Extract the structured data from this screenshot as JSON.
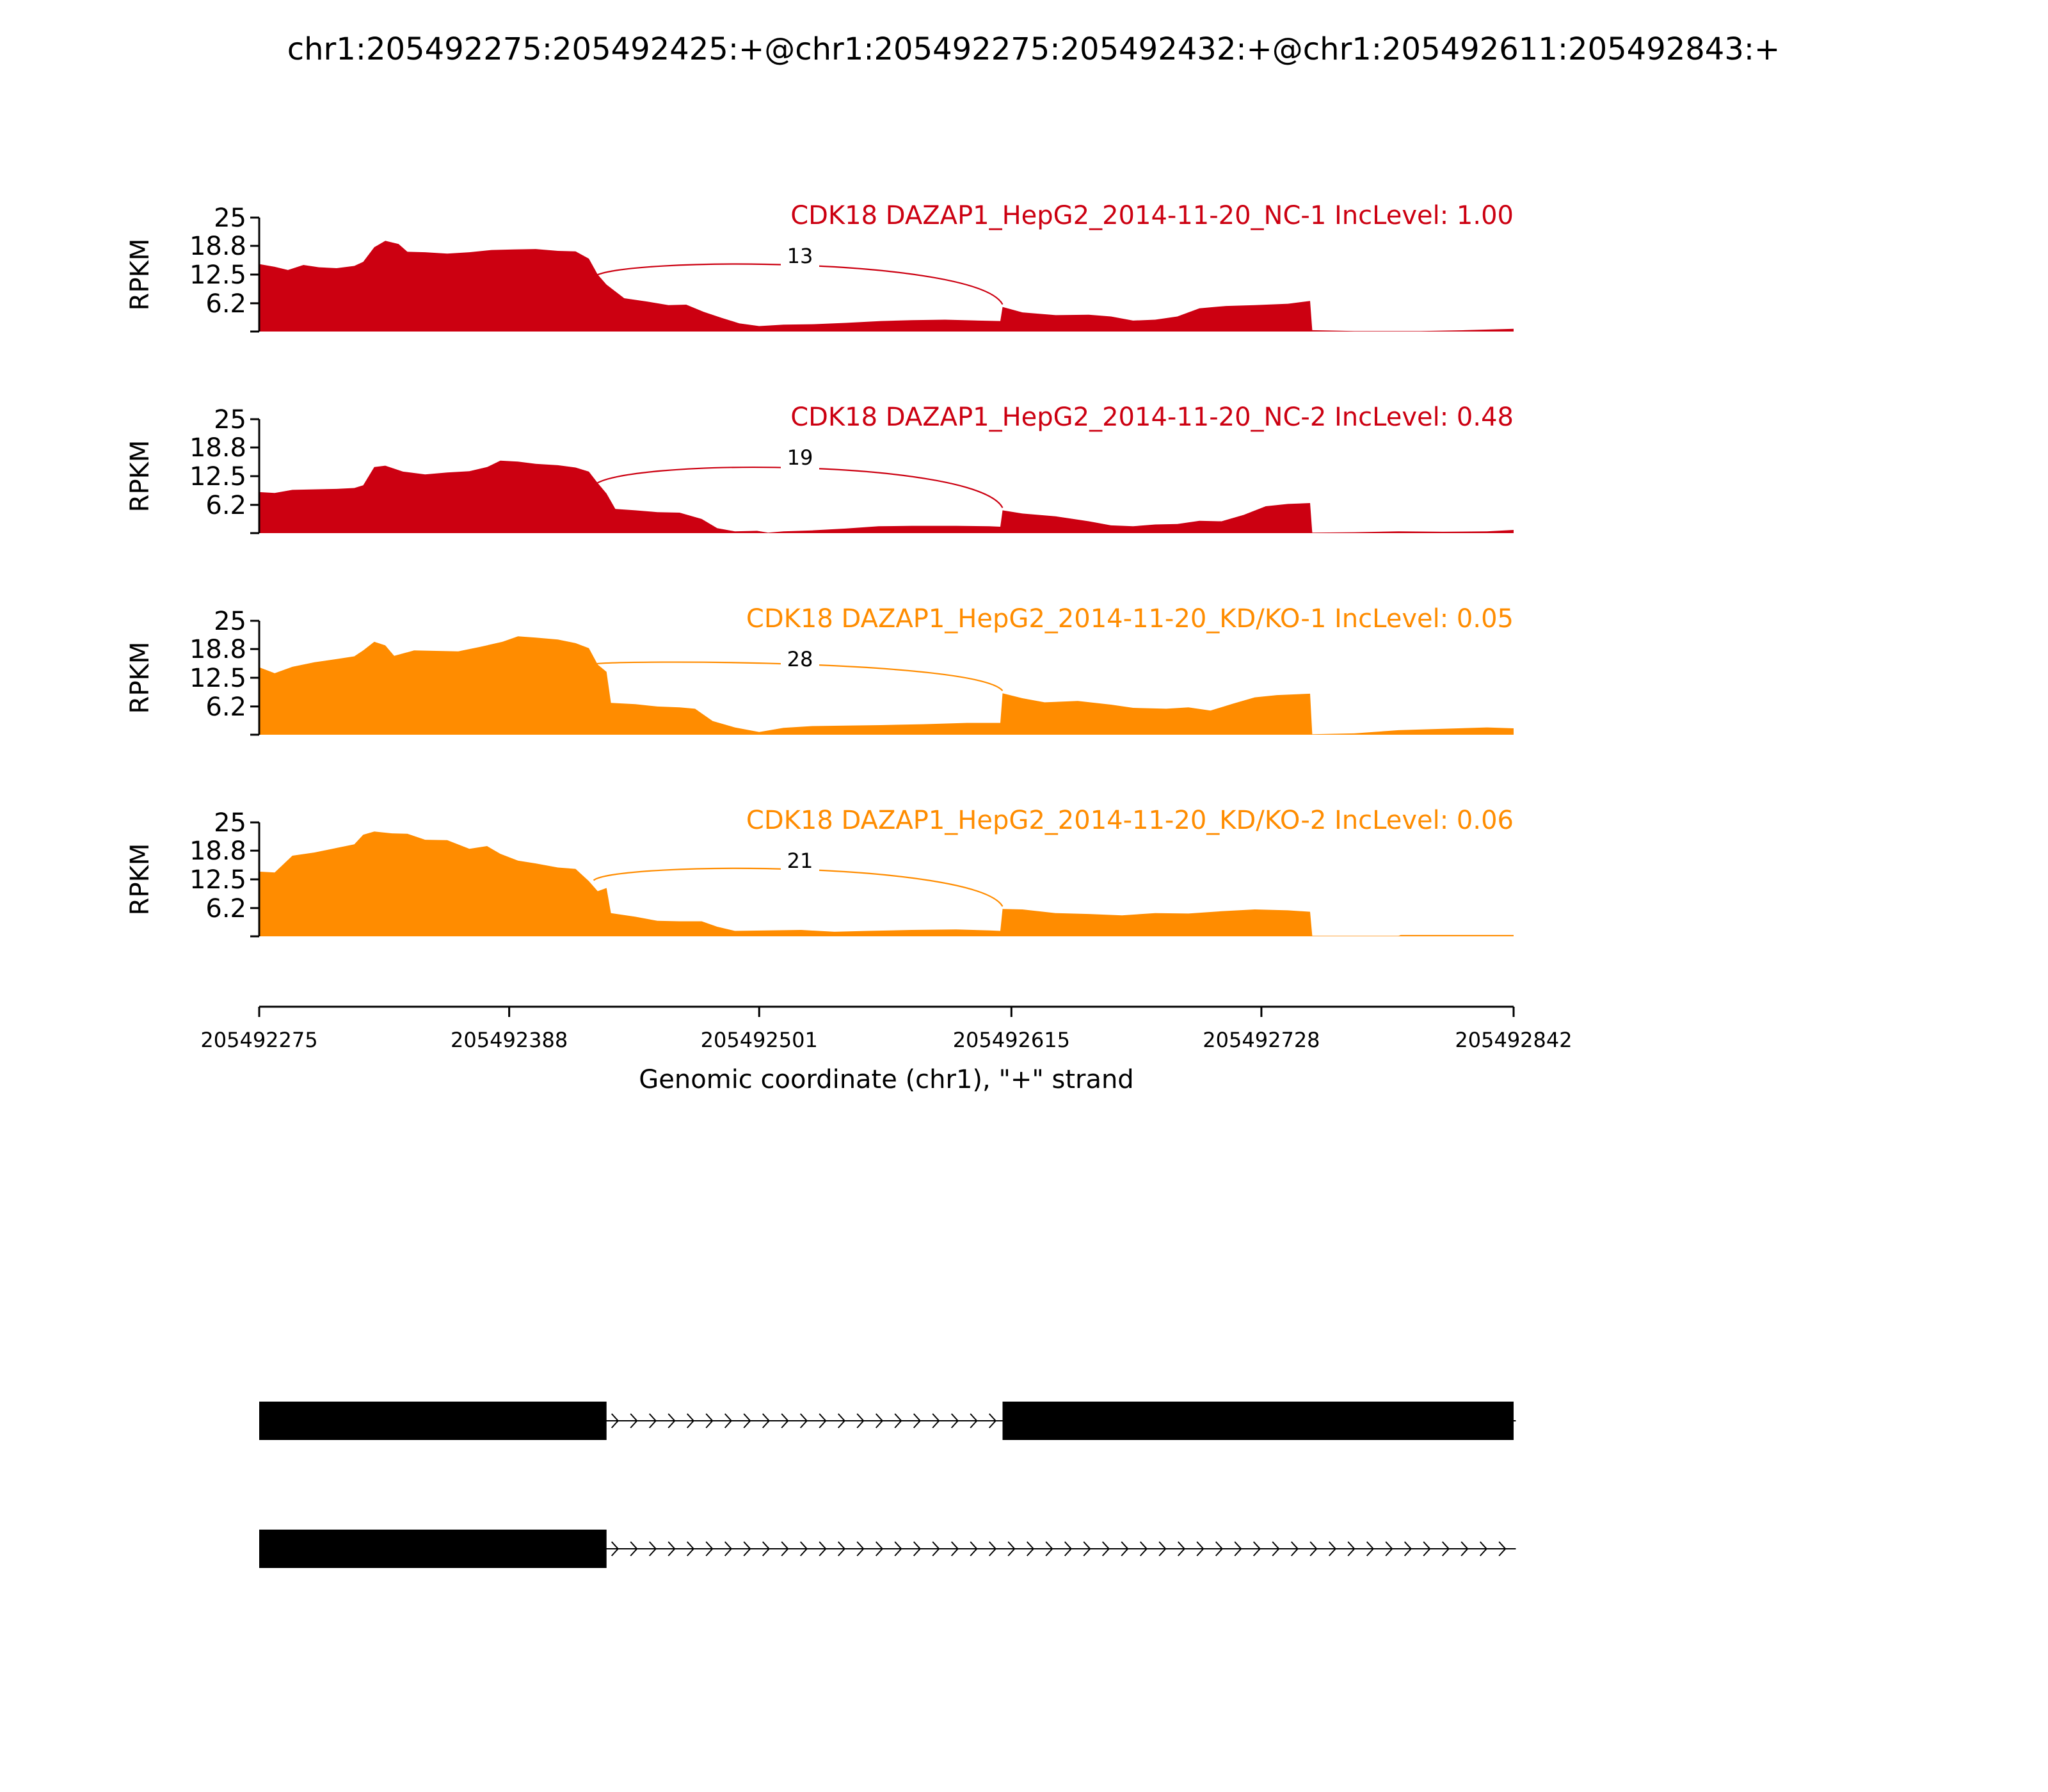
{
  "title": "chr1:205492275:205492425:+@chr1:205492275:205492432:+@chr1:205492611:205492843:+",
  "chart_data": {
    "type": "area",
    "ylabel": "RPKM",
    "xlabel": "Genomic coordinate (chr1), \"+\" strand",
    "ylim": [
      0,
      25
    ],
    "yticks": [
      "25",
      "18.8",
      "12.5",
      "6.2"
    ],
    "xlim": [
      205492275,
      205492842
    ],
    "xticks": [
      "205492275",
      "205492388",
      "205492501",
      "205492615",
      "205492728",
      "205492842"
    ],
    "tracks": [
      {
        "label": "CDK18 DAZAP1_HepG2_2014-11-20_NC-1 IncLevel: 1.00",
        "color": "#cc0011",
        "junction_count": "13",
        "coverage": [
          [
            205492275,
            14.8
          ],
          [
            205492282,
            14.2
          ],
          [
            205492288,
            13.5
          ],
          [
            205492295,
            14.6
          ],
          [
            205492302,
            14.1
          ],
          [
            205492310,
            13.9
          ],
          [
            205492318,
            14.4
          ],
          [
            205492322,
            15.3
          ],
          [
            205492327,
            18.5
          ],
          [
            205492332,
            19.9
          ],
          [
            205492338,
            19.2
          ],
          [
            205492342,
            17.5
          ],
          [
            205492350,
            17.4
          ],
          [
            205492360,
            17.1
          ],
          [
            205492370,
            17.4
          ],
          [
            205492380,
            17.9
          ],
          [
            205492390,
            18.0
          ],
          [
            205492400,
            18.1
          ],
          [
            205492410,
            17.7
          ],
          [
            205492418,
            17.6
          ],
          [
            205492424,
            16.0
          ],
          [
            205492428,
            12.5
          ],
          [
            205492432,
            10.3
          ],
          [
            205492440,
            7.3
          ],
          [
            205492450,
            6.6
          ],
          [
            205492460,
            5.8
          ],
          [
            205492468,
            5.9
          ],
          [
            205492476,
            4.3
          ],
          [
            205492484,
            3.0
          ],
          [
            205492492,
            1.8
          ],
          [
            205492501,
            1.2
          ],
          [
            205492512,
            1.5
          ],
          [
            205492525,
            1.6
          ],
          [
            205492540,
            1.9
          ],
          [
            205492556,
            2.3
          ],
          [
            205492570,
            2.5
          ],
          [
            205492585,
            2.6
          ],
          [
            205492600,
            2.4
          ],
          [
            205492610,
            2.3
          ],
          [
            205492611,
            5.4
          ],
          [
            205492620,
            4.2
          ],
          [
            205492635,
            3.6
          ],
          [
            205492650,
            3.7
          ],
          [
            205492660,
            3.3
          ],
          [
            205492670,
            2.4
          ],
          [
            205492680,
            2.6
          ],
          [
            205492690,
            3.3
          ],
          [
            205492700,
            5.1
          ],
          [
            205492712,
            5.6
          ],
          [
            205492725,
            5.8
          ],
          [
            205492740,
            6.1
          ],
          [
            205492750,
            6.7
          ],
          [
            205492751,
            0.3
          ],
          [
            205492770,
            0.1
          ],
          [
            205492800,
            0.1
          ],
          [
            205492820,
            0.3
          ],
          [
            205492842,
            0.6
          ]
        ]
      },
      {
        "label": "CDK18 DAZAP1_HepG2_2014-11-20_NC-2 IncLevel: 0.48",
        "color": "#cc0011",
        "junction_count": "19",
        "coverage": [
          [
            205492275,
            9.0
          ],
          [
            205492282,
            8.8
          ],
          [
            205492290,
            9.5
          ],
          [
            205492300,
            9.6
          ],
          [
            205492310,
            9.7
          ],
          [
            205492318,
            9.9
          ],
          [
            205492322,
            10.5
          ],
          [
            205492327,
            14.5
          ],
          [
            205492332,
            14.8
          ],
          [
            205492340,
            13.5
          ],
          [
            205492350,
            12.9
          ],
          [
            205492360,
            13.3
          ],
          [
            205492370,
            13.6
          ],
          [
            205492378,
            14.5
          ],
          [
            205492384,
            15.9
          ],
          [
            205492392,
            15.7
          ],
          [
            205492400,
            15.2
          ],
          [
            205492410,
            14.9
          ],
          [
            205492418,
            14.4
          ],
          [
            205492424,
            13.5
          ],
          [
            205492428,
            11.0
          ],
          [
            205492432,
            8.7
          ],
          [
            205492436,
            5.3
          ],
          [
            205492445,
            5.0
          ],
          [
            205492455,
            4.6
          ],
          [
            205492465,
            4.5
          ],
          [
            205492475,
            3.1
          ],
          [
            205492482,
            1.1
          ],
          [
            205492490,
            0.4
          ],
          [
            205492500,
            0.5
          ],
          [
            205492505,
            0.1
          ],
          [
            205492512,
            0.4
          ],
          [
            205492525,
            0.6
          ],
          [
            205492540,
            1.0
          ],
          [
            205492555,
            1.5
          ],
          [
            205492570,
            1.6
          ],
          [
            205492590,
            1.6
          ],
          [
            205492605,
            1.5
          ],
          [
            205492610,
            1.4
          ],
          [
            205492611,
            5.0
          ],
          [
            205492620,
            4.3
          ],
          [
            205492635,
            3.7
          ],
          [
            205492650,
            2.6
          ],
          [
            205492660,
            1.7
          ],
          [
            205492670,
            1.5
          ],
          [
            205492680,
            1.9
          ],
          [
            205492690,
            2.0
          ],
          [
            205492700,
            2.7
          ],
          [
            205492710,
            2.6
          ],
          [
            205492720,
            4.0
          ],
          [
            205492730,
            5.9
          ],
          [
            205492740,
            6.4
          ],
          [
            205492750,
            6.6
          ],
          [
            205492751,
            0.1
          ],
          [
            205492770,
            0.2
          ],
          [
            205492790,
            0.4
          ],
          [
            205492810,
            0.3
          ],
          [
            205492830,
            0.4
          ],
          [
            205492842,
            0.7
          ]
        ]
      },
      {
        "label": "CDK18 DAZAP1_HepG2_2014-11-20_KD/KO-1 IncLevel: 0.05",
        "color": "#ff8c00",
        "junction_count": "28",
        "coverage": [
          [
            205492275,
            14.8
          ],
          [
            205492282,
            13.5
          ],
          [
            205492290,
            14.9
          ],
          [
            205492300,
            15.9
          ],
          [
            205492310,
            16.6
          ],
          [
            205492318,
            17.2
          ],
          [
            205492322,
            18.5
          ],
          [
            205492327,
            20.4
          ],
          [
            205492332,
            19.6
          ],
          [
            205492336,
            17.3
          ],
          [
            205492345,
            18.5
          ],
          [
            205492355,
            18.4
          ],
          [
            205492365,
            18.3
          ],
          [
            205492375,
            19.3
          ],
          [
            205492385,
            20.4
          ],
          [
            205492392,
            21.6
          ],
          [
            205492400,
            21.3
          ],
          [
            205492410,
            20.9
          ],
          [
            205492418,
            20.1
          ],
          [
            205492424,
            19.0
          ],
          [
            205492428,
            15.4
          ],
          [
            205492432,
            13.8
          ],
          [
            205492434,
            7.0
          ],
          [
            205492445,
            6.7
          ],
          [
            205492455,
            6.2
          ],
          [
            205492465,
            6.0
          ],
          [
            205492472,
            5.7
          ],
          [
            205492480,
            3.0
          ],
          [
            205492490,
            1.6
          ],
          [
            205492501,
            0.6
          ],
          [
            205492512,
            1.5
          ],
          [
            205492525,
            1.9
          ],
          [
            205492540,
            2.0
          ],
          [
            205492556,
            2.1
          ],
          [
            205492575,
            2.3
          ],
          [
            205492595,
            2.6
          ],
          [
            205492610,
            2.6
          ],
          [
            205492611,
            9.1
          ],
          [
            205492620,
            8.0
          ],
          [
            205492630,
            7.1
          ],
          [
            205492645,
            7.4
          ],
          [
            205492660,
            6.6
          ],
          [
            205492670,
            5.9
          ],
          [
            205492685,
            5.7
          ],
          [
            205492695,
            6.0
          ],
          [
            205492705,
            5.3
          ],
          [
            205492715,
            6.8
          ],
          [
            205492725,
            8.2
          ],
          [
            205492735,
            8.7
          ],
          [
            205492750,
            9.0
          ],
          [
            205492751,
            0.1
          ],
          [
            205492770,
            0.3
          ],
          [
            205492790,
            1.0
          ],
          [
            205492810,
            1.3
          ],
          [
            205492830,
            1.6
          ],
          [
            205492842,
            1.4
          ]
        ]
      },
      {
        "label": "CDK18 DAZAP1_HepG2_2014-11-20_KD/KO-2 IncLevel: 0.06",
        "color": "#ff8c00",
        "junction_count": "21",
        "coverage": [
          [
            205492275,
            14.2
          ],
          [
            205492282,
            14.0
          ],
          [
            205492290,
            17.7
          ],
          [
            205492300,
            18.4
          ],
          [
            205492310,
            19.4
          ],
          [
            205492318,
            20.2
          ],
          [
            205492322,
            22.3
          ],
          [
            205492327,
            23.0
          ],
          [
            205492335,
            22.6
          ],
          [
            205492342,
            22.5
          ],
          [
            205492350,
            21.2
          ],
          [
            205492360,
            21.1
          ],
          [
            205492370,
            19.2
          ],
          [
            205492378,
            19.8
          ],
          [
            205492384,
            18.1
          ],
          [
            205492392,
            16.6
          ],
          [
            205492400,
            16.0
          ],
          [
            205492410,
            15.1
          ],
          [
            205492418,
            14.8
          ],
          [
            205492424,
            12.1
          ],
          [
            205492428,
            9.9
          ],
          [
            205492432,
            10.6
          ],
          [
            205492434,
            5.1
          ],
          [
            205492445,
            4.3
          ],
          [
            205492455,
            3.4
          ],
          [
            205492465,
            3.3
          ],
          [
            205492475,
            3.3
          ],
          [
            205492482,
            2.1
          ],
          [
            205492490,
            1.2
          ],
          [
            205492505,
            1.3
          ],
          [
            205492520,
            1.4
          ],
          [
            205492535,
            1.0
          ],
          [
            205492550,
            1.2
          ],
          [
            205492570,
            1.4
          ],
          [
            205492590,
            1.5
          ],
          [
            205492605,
            1.3
          ],
          [
            205492610,
            1.2
          ],
          [
            205492611,
            6.0
          ],
          [
            205492620,
            5.9
          ],
          [
            205492635,
            5.1
          ],
          [
            205492650,
            4.9
          ],
          [
            205492665,
            4.6
          ],
          [
            205492680,
            5.1
          ],
          [
            205492695,
            5.0
          ],
          [
            205492710,
            5.5
          ],
          [
            205492725,
            5.9
          ],
          [
            205492740,
            5.7
          ],
          [
            205492750,
            5.4
          ],
          [
            205492751,
            0.1
          ],
          [
            205492790,
            0.1
          ],
          [
            205492791,
            0.3
          ],
          [
            205492842,
            0.3
          ]
        ]
      }
    ],
    "junction": {
      "start": 205492425,
      "end": 205492611
    },
    "isoforms": [
      {
        "exons": [
          [
            205492275,
            205492432
          ],
          [
            205492611,
            205492843
          ]
        ],
        "line_end": 205492843
      },
      {
        "exons": [
          [
            205492275,
            205492432
          ]
        ],
        "line_end": 205492843
      }
    ]
  }
}
